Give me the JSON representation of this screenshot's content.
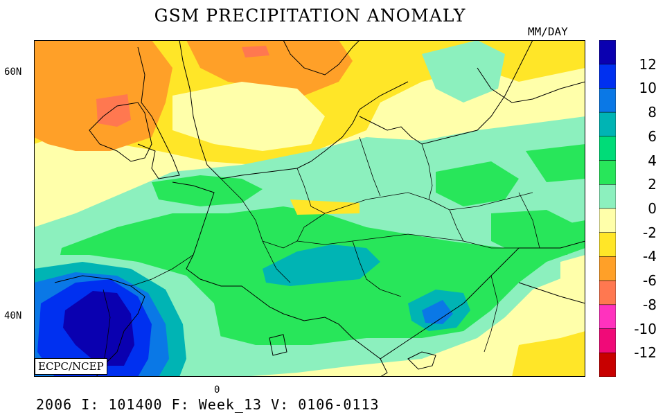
{
  "title": "GSM PRECIPITATION ANOMALY",
  "units": "MM/DAY",
  "credit": "ECPC/NCEP",
  "footer": "2006 I: 101400 F: Week_13 V: 0106-0113",
  "lat_labels": {
    "north": "60N",
    "south": "40N"
  },
  "lon_label": "0",
  "colorbar": {
    "labels": [
      "12",
      "10",
      "8",
      "6",
      "4",
      "2",
      "0",
      "-2",
      "-4",
      "-6",
      "-8",
      "-10",
      "-12"
    ],
    "colors": [
      "#0a00b0",
      "#0030f0",
      "#0a78e6",
      "#00b4b4",
      "#00dc78",
      "#28e65a",
      "#8cf0be",
      "#ffffaa",
      "#ffe628",
      "#ffa028",
      "#ff7850",
      "#ff32be",
      "#f00a78",
      "#c80000"
    ]
  },
  "colors": {
    "land_light": "#ffffaa",
    "light_green": "#8cf0be",
    "green": "#28e65a",
    "teal": "#00b4b4",
    "blue": "#0a78e6",
    "deep_blue": "#0030f0",
    "navy": "#0a00b0",
    "yellow": "#ffe628",
    "orange": "#ffa028",
    "salmon": "#ff7850",
    "boundary": "#000000"
  }
}
